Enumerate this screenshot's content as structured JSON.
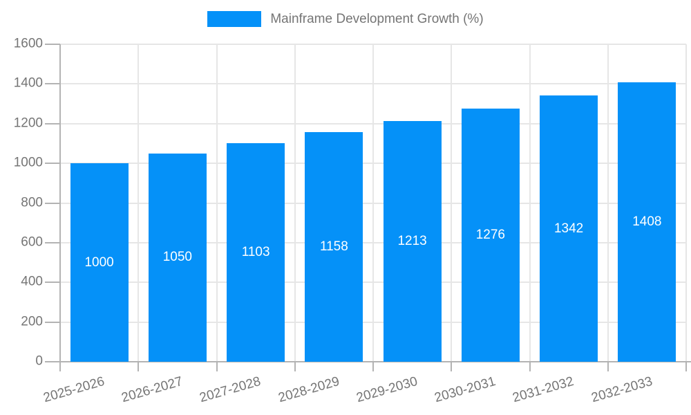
{
  "legend": {
    "label": "Mainframe Development Growth (%)"
  },
  "colors": {
    "bar": "#0591f8",
    "grid": "#e6e6e6",
    "axis": "#b3b3b3",
    "tick_text": "#757575",
    "value_text": "#ffffff",
    "background": "#ffffff"
  },
  "chart_data": {
    "type": "bar",
    "title": "Mainframe Development Growth (%)",
    "categories": [
      "2025-2026",
      "2026-2027",
      "2027-2028",
      "2028-2029",
      "2029-2030",
      "2030-2031",
      "2031-2032",
      "2032-2033"
    ],
    "values": [
      1000,
      1050,
      1103,
      1158,
      1213,
      1276,
      1342,
      1408
    ],
    "bar_value_labels": [
      "1000",
      "1050",
      "1103",
      "1158",
      "1213",
      "1276",
      "1342",
      "1408"
    ],
    "xlabel": "",
    "ylabel": "",
    "ylim": [
      0,
      1600
    ],
    "yticks": [
      0,
      200,
      400,
      600,
      800,
      1000,
      1200,
      1400,
      1600
    ],
    "grid": true,
    "legend_position": "top-center",
    "value_label_position": "centered-inside-bar",
    "x_tick_rotation_deg": -16
  }
}
